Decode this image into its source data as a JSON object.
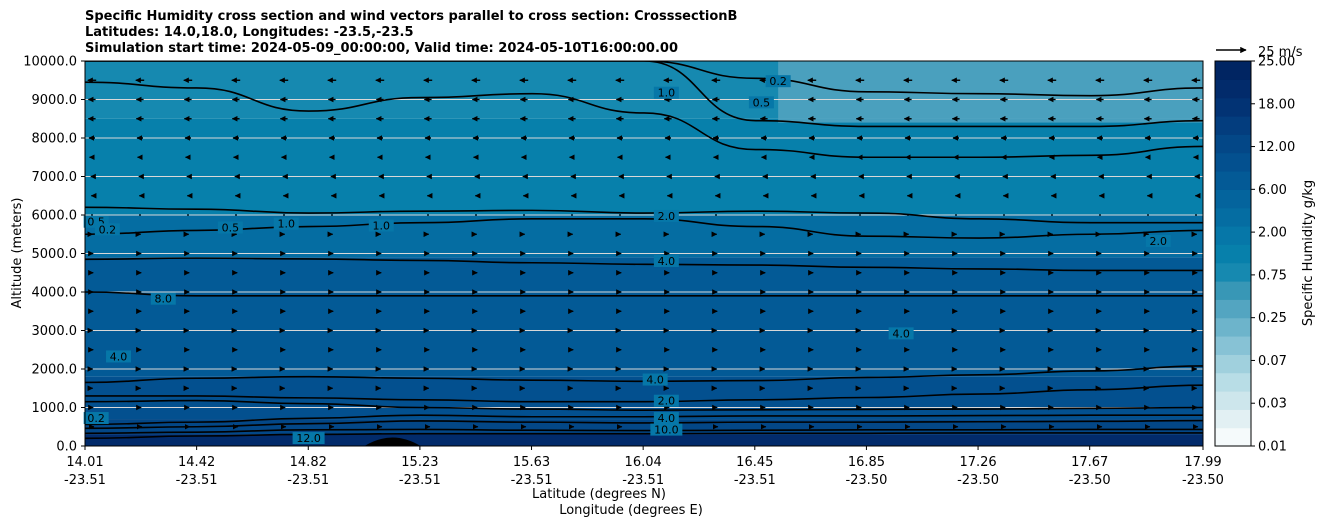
{
  "chart_data": {
    "type": "contour",
    "title_lines": [
      "Specific Humidity cross section and wind vectors parallel to cross section: CrosssectionB",
      "Latitudes: 14.0,18.0, Longitudes: -23.5,-23.5",
      "Simulation start time: 2024-05-09_00:00:00, Valid time: 2024-05-10T16:00:00.00"
    ],
    "ylabel": "Altitude (meters)",
    "xlabel_lat": "Latitude (degrees N)",
    "xlabel_lon": "Longitude (degrees E)",
    "ylim": [
      0,
      10000
    ],
    "y_ticks": [
      {
        "value": 0,
        "label": "0.0"
      },
      {
        "value": 1000,
        "label": "1000.0"
      },
      {
        "value": 2000,
        "label": "2000.0"
      },
      {
        "value": 3000,
        "label": "3000.0"
      },
      {
        "value": 4000,
        "label": "4000.0"
      },
      {
        "value": 5000,
        "label": "5000.0"
      },
      {
        "value": 6000,
        "label": "6000.0"
      },
      {
        "value": 7000,
        "label": "7000.0"
      },
      {
        "value": 8000,
        "label": "8000.0"
      },
      {
        "value": 9000,
        "label": "9000.0"
      },
      {
        "value": 10000,
        "label": "10000.0"
      }
    ],
    "x_ticks": [
      {
        "lat": "14.01",
        "lon": "-23.51"
      },
      {
        "lat": "14.42",
        "lon": "-23.51"
      },
      {
        "lat": "14.82",
        "lon": "-23.51"
      },
      {
        "lat": "15.23",
        "lon": "-23.51"
      },
      {
        "lat": "15.63",
        "lon": "-23.51"
      },
      {
        "lat": "16.04",
        "lon": "-23.51"
      },
      {
        "lat": "16.45",
        "lon": "-23.51"
      },
      {
        "lat": "16.85",
        "lon": "-23.50"
      },
      {
        "lat": "17.26",
        "lon": "-23.50"
      },
      {
        "lat": "17.67",
        "lon": "-23.50"
      },
      {
        "lat": "17.99",
        "lon": "-23.50"
      }
    ],
    "colorbar": {
      "label": "Specific Humidity g/kg",
      "levels": [
        "0.01",
        "0.03",
        "0.07",
        "0.25",
        "0.75",
        "2.00",
        "6.00",
        "12.00",
        "18.00",
        "25.00"
      ],
      "colors": [
        "#f5fafb",
        "#e2f0f3",
        "#cde6ec",
        "#b8dde6",
        "#a0d0dd",
        "#87c2d5",
        "#6db4cb",
        "#53a5c1",
        "#3897b6",
        "#1689b0",
        "#0780ab",
        "#0677a8",
        "#056da2",
        "#04649d",
        "#035a96",
        "#03508f",
        "#034787",
        "#033d7e",
        "#023374",
        "#022b6b",
        "#012562"
      ]
    },
    "wind_key": {
      "label": "25 m/s",
      "speed": 25
    },
    "humidity_layers": [
      {
        "top": 10000,
        "value": 0.75
      },
      {
        "top": 8500,
        "value": 1.3
      },
      {
        "top": 6000,
        "value": 3.0
      },
      {
        "top": 4900,
        "value": 6.5
      },
      {
        "top": 1800,
        "value": 10.0
      },
      {
        "top": 700,
        "value": 14.0
      },
      {
        "top": 300,
        "value": 18.0
      }
    ],
    "contours": [
      {
        "level": "12.0",
        "alt": [
          200,
          260,
          300,
          320,
          320,
          320,
          330,
          330,
          340,
          340,
          340
        ]
      },
      {
        "level": "14.0",
        "alt": [
          330,
          360,
          420,
          430,
          410,
          400,
          410,
          420,
          420,
          430,
          430
        ]
      },
      {
        "level": "10.0",
        "alt": [
          460,
          500,
          580,
          650,
          620,
          600,
          620,
          620,
          630,
          640,
          660
        ]
      },
      {
        "level": "8.0",
        "alt": [
          560,
          620,
          720,
          800,
          760,
          760,
          780,
          780,
          790,
          800,
          800
        ]
      },
      {
        "level": "4.0",
        "alt": [
          1150,
          1180,
          1100,
          1000,
          960,
          930,
          940,
          950,
          960,
          980,
          1000
        ]
      },
      {
        "level": "2.0",
        "alt": [
          1300,
          1300,
          1250,
          1200,
          1150,
          1150,
          1200,
          1260,
          1350,
          1460,
          1580
        ]
      },
      {
        "level": "4.0",
        "alt": [
          1650,
          1760,
          1800,
          1760,
          1710,
          1680,
          1700,
          1780,
          1850,
          1950,
          2080
        ]
      },
      {
        "level": "8.0",
        "alt": [
          4000,
          3900,
          3900,
          3900,
          3900,
          3900,
          3900,
          3900,
          3900,
          3900,
          3900
        ]
      },
      {
        "level": "4.0",
        "alt": [
          4850,
          4880,
          4860,
          4820,
          4760,
          4720,
          4700,
          4640,
          4600,
          4560,
          4560
        ]
      },
      {
        "level": "2.0",
        "alt": [
          5500,
          5600,
          5700,
          5800,
          5900,
          5900,
          5700,
          5450,
          5400,
          5500,
          5600
        ]
      },
      {
        "level": "2.0",
        "alt": [
          6200,
          6150,
          6050,
          6100,
          6120,
          6050,
          6100,
          6050,
          5900,
          5800,
          5800
        ]
      },
      {
        "level": "1.0",
        "alt": [
          9450,
          9300,
          8700,
          9050,
          9150,
          8650,
          7700,
          7500,
          7500,
          7550,
          7780
        ]
      },
      {
        "level": "0.5",
        "alt": [
          10000,
          10000,
          10000,
          10000,
          10000,
          10000,
          8450,
          8300,
          8300,
          8300,
          8450
        ]
      },
      {
        "level": "0.2",
        "alt": [
          10000,
          10000,
          10000,
          10000,
          10000,
          10000,
          9550,
          9200,
          9150,
          9100,
          9300
        ]
      }
    ],
    "contour_labels": [
      {
        "text": "1.0",
        "x_frac": 0.52,
        "alt": 9150
      },
      {
        "text": "0.5",
        "x_frac": 0.605,
        "alt": 8900
      },
      {
        "text": "0.2",
        "x_frac": 0.62,
        "alt": 9450
      },
      {
        "text": "2.0",
        "x_frac": 0.52,
        "alt": 5950
      },
      {
        "text": "4.0",
        "x_frac": 0.52,
        "alt": 4780
      },
      {
        "text": "0.5",
        "x_frac": 0.13,
        "alt": 5650
      },
      {
        "text": "1.0",
        "x_frac": 0.18,
        "alt": 5750
      },
      {
        "text": "1.0",
        "x_frac": 0.265,
        "alt": 5700
      },
      {
        "text": "8.0",
        "x_frac": 0.07,
        "alt": 3800
      },
      {
        "text": "4.0",
        "x_frac": 0.03,
        "alt": 2300
      },
      {
        "text": "4.0",
        "x_frac": 0.73,
        "alt": 2900
      },
      {
        "text": "2.0",
        "x_frac": 0.96,
        "alt": 5300
      },
      {
        "text": "4.0",
        "x_frac": 0.51,
        "alt": 1700
      },
      {
        "text": "2.0",
        "x_frac": 0.52,
        "alt": 1150
      },
      {
        "text": "4.0",
        "x_frac": 0.52,
        "alt": 700
      },
      {
        "text": "10.0",
        "x_frac": 0.52,
        "alt": 400
      },
      {
        "text": "12.0",
        "x_frac": 0.2,
        "alt": 180
      },
      {
        "text": "0.2",
        "x_frac": 0.01,
        "alt": 700
      },
      {
        "text": "0.5",
        "x_frac": 0.01,
        "alt": 5800
      },
      {
        "text": "0.2",
        "x_frac": 0.02,
        "alt": 5600
      }
    ],
    "wind_rows": [
      {
        "alt": 9500,
        "u": -7
      },
      {
        "alt": 9000,
        "u": -6
      },
      {
        "alt": 8500,
        "u": -6
      },
      {
        "alt": 8000,
        "u": -5
      },
      {
        "alt": 7500,
        "u": -4
      },
      {
        "alt": 7000,
        "u": -2
      },
      {
        "alt": 6500,
        "u": -1
      },
      {
        "alt": 6000,
        "u": 0
      },
      {
        "alt": 5500,
        "u": 1
      },
      {
        "alt": 5000,
        "u": 2
      },
      {
        "alt": 4500,
        "u": 2
      },
      {
        "alt": 4000,
        "u": 2
      },
      {
        "alt": 3500,
        "u": 2
      },
      {
        "alt": 3000,
        "u": 1
      },
      {
        "alt": 2500,
        "u": 2
      },
      {
        "alt": 2000,
        "u": 1
      },
      {
        "alt": 1500,
        "u": 1
      },
      {
        "alt": 1000,
        "u": 2
      },
      {
        "alt": 500,
        "u": 3
      }
    ],
    "terrain": {
      "center_x_frac": 0.275,
      "peak_alt": 220
    }
  }
}
